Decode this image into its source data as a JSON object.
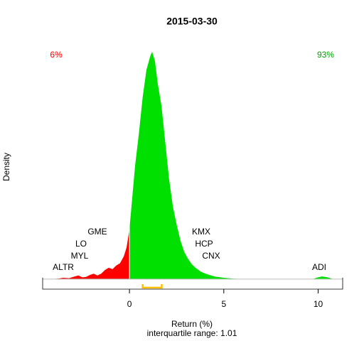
{
  "chart_data": {
    "type": "density",
    "title": "2015-03-30",
    "x_label": "Return (%)",
    "y_label": "Density",
    "subtitle": "interquartile range: 1.01",
    "share_below_zero": "6%",
    "share_above_zero": "93%",
    "stock_labels": [
      "ALTR",
      "MYL",
      "LO",
      "GME",
      "KMX",
      "HCP",
      "CNX",
      "ADI"
    ],
    "x": [
      -4.2,
      -3.8,
      -3.5,
      -3.2,
      -2.9,
      -2.7,
      -2.5,
      -2.3,
      -2.1,
      -1.9,
      -1.7,
      -1.5,
      -1.3,
      -1.1,
      -0.9,
      -0.7,
      -0.5,
      -0.3,
      -0.15,
      0,
      0.15,
      0.3,
      0.5,
      0.7,
      0.9,
      1.1,
      1.2,
      1.35,
      1.5,
      1.7,
      1.9,
      2.1,
      2.3,
      2.5,
      2.7,
      2.9,
      3.1,
      3.3,
      3.5,
      3.8,
      4.1,
      4.5,
      5,
      5.5,
      6,
      7,
      8,
      9,
      9.7,
      10,
      10.2,
      10.5,
      10.8
    ],
    "values": [
      0,
      0.001,
      0.003,
      0.002,
      0.006,
      0.008,
      0.004,
      0.005,
      0.009,
      0.012,
      0.008,
      0.012,
      0.02,
      0.025,
      0.022,
      0.03,
      0.035,
      0.05,
      0.07,
      0.11,
      0.18,
      0.25,
      0.32,
      0.4,
      0.46,
      0.49,
      0.5,
      0.48,
      0.43,
      0.38,
      0.3,
      0.22,
      0.16,
      0.12,
      0.085,
      0.06,
      0.045,
      0.033,
      0.025,
      0.016,
      0.011,
      0.006,
      0.003,
      0.001,
      0,
      0,
      0,
      0,
      0,
      0.004,
      0.006,
      0.004,
      0
    ],
    "color_below_zero": "#ff0000",
    "color_above_zero": "#00e000",
    "quartiles": [
      0.7,
      1.71
    ],
    "quartile_color": "#ffc000",
    "xlim": [
      -4.6,
      11.3
    ],
    "ylim": [
      -0.022,
      0.52
    ],
    "xticks": [
      0,
      5,
      10
    ]
  }
}
